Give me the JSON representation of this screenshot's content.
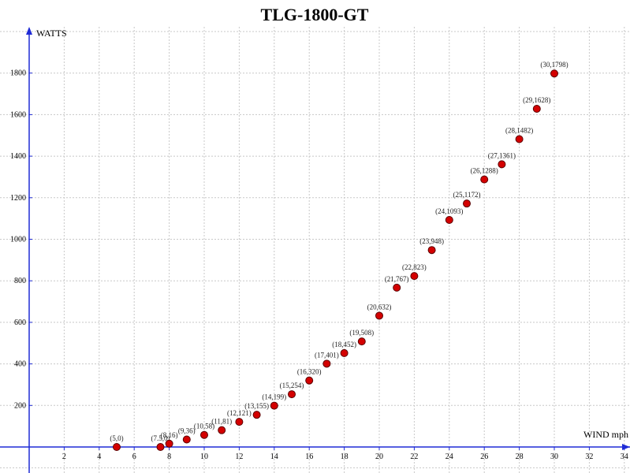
{
  "chart_data": {
    "type": "scatter",
    "title": "TLG-1800-GT",
    "xlabel": "WIND mph",
    "ylabel": "WATTS",
    "xlim": [
      0,
      34
    ],
    "ylim": [
      0,
      2000
    ],
    "x_ticks": [
      2,
      4,
      6,
      8,
      10,
      12,
      14,
      16,
      18,
      20,
      22,
      24,
      26,
      28,
      30,
      32,
      34
    ],
    "y_ticks": [
      200,
      400,
      600,
      800,
      1000,
      1200,
      1400,
      1600,
      1800
    ],
    "grid": true,
    "point_color": "#d40000",
    "axis_color": "#1f2bd6",
    "points": [
      {
        "x": 5,
        "y": 0,
        "label": "(5,0)"
      },
      {
        "x": 7.5,
        "y": 0,
        "label": "(7.5,0)"
      },
      {
        "x": 8,
        "y": 16,
        "label": "(8,16)"
      },
      {
        "x": 9,
        "y": 36,
        "label": "(9,36)"
      },
      {
        "x": 10,
        "y": 58,
        "label": "(10,58)"
      },
      {
        "x": 11,
        "y": 81,
        "label": "(11,81)"
      },
      {
        "x": 12,
        "y": 121,
        "label": "(12,121)"
      },
      {
        "x": 13,
        "y": 155,
        "label": "(13,155)"
      },
      {
        "x": 14,
        "y": 199,
        "label": "(14,199)"
      },
      {
        "x": 15,
        "y": 254,
        "label": "(15,254)"
      },
      {
        "x": 16,
        "y": 320,
        "label": "(16,320)"
      },
      {
        "x": 17,
        "y": 401,
        "label": "(17,401)"
      },
      {
        "x": 18,
        "y": 452,
        "label": "(18,452)"
      },
      {
        "x": 19,
        "y": 508,
        "label": "(19,508)"
      },
      {
        "x": 20,
        "y": 632,
        "label": "(20,632)"
      },
      {
        "x": 21,
        "y": 767,
        "label": "(21,767)"
      },
      {
        "x": 22,
        "y": 823,
        "label": "(22,823)"
      },
      {
        "x": 23,
        "y": 948,
        "label": "(23,948)"
      },
      {
        "x": 24,
        "y": 1093,
        "label": "(24,1093)"
      },
      {
        "x": 25,
        "y": 1172,
        "label": "(25,1172)"
      },
      {
        "x": 26,
        "y": 1288,
        "label": "(26,1288)"
      },
      {
        "x": 27,
        "y": 1361,
        "label": "(27,1361)"
      },
      {
        "x": 28,
        "y": 1482,
        "label": "(28,1482)"
      },
      {
        "x": 29,
        "y": 1628,
        "label": "(29,1628)"
      },
      {
        "x": 30,
        "y": 1798,
        "label": "(30,1798)"
      }
    ]
  }
}
